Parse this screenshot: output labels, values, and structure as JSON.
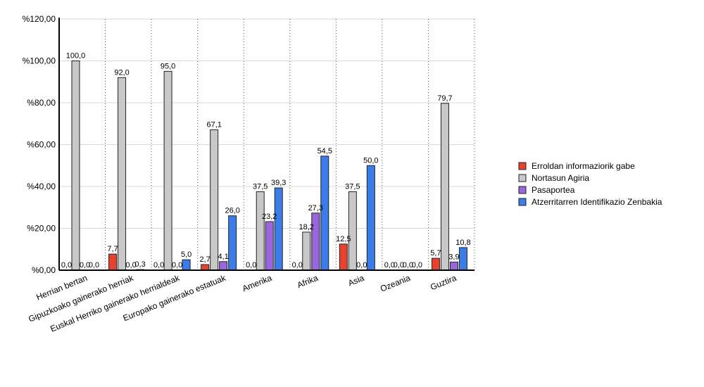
{
  "chart_data": {
    "type": "bar",
    "title": "",
    "xlabel": "",
    "ylabel": "",
    "ylim": [
      0,
      120
    ],
    "yticks": [
      0,
      20,
      40,
      60,
      80,
      100,
      120
    ],
    "ytick_labels": [
      "%0,00",
      "%20,00",
      "%40,00",
      "%60,00",
      "%80,00",
      "%100,00",
      "%120,00"
    ],
    "grid": "horizontal solid, vertical dotted between categories",
    "legend_position": "right",
    "categories": [
      "Herrian bertan",
      "Gipuzkoako gainerako herriak",
      "Euskal Herriko gainerako herrialdeak",
      "Europako gainerako estatuak",
      "Amerika",
      "Afrika",
      "Asia",
      "Ozeania",
      "Guztira"
    ],
    "series": [
      {
        "name": "Erroldan informaziorik gabe",
        "color": "#e8412c",
        "values": [
          0.0,
          7.7,
          0.0,
          2.7,
          0.0,
          0.0,
          12.5,
          0.0,
          5.7
        ],
        "labels": [
          "0,0",
          "7,7",
          "0,0",
          "2,7",
          "0,0",
          "0,0",
          "12,5",
          "0,0",
          "5,7"
        ]
      },
      {
        "name": "Nortasun Agiria",
        "color": "#c8c8c8",
        "values": [
          100.0,
          92.0,
          95.0,
          67.1,
          37.5,
          18.2,
          37.5,
          0.0,
          79.7
        ],
        "labels": [
          "100,0",
          "92,0",
          "95,0",
          "67,1",
          "37,5",
          "18,2",
          "37,5",
          "0,0",
          "79,7"
        ]
      },
      {
        "name": "Pasaportea",
        "color": "#9966dd",
        "values": [
          0.0,
          0.0,
          0.0,
          4.1,
          23.2,
          27.3,
          0.0,
          0.0,
          3.9
        ],
        "labels": [
          "0,0",
          "0,0",
          "0,0",
          "4,1",
          "23,2",
          "27,3",
          "0,0",
          "0,0",
          "3,9"
        ]
      },
      {
        "name": "Atzerritarren Identifikazio Zenbakia",
        "color": "#3b7de8",
        "values": [
          0.0,
          0.3,
          5.0,
          26.0,
          39.3,
          54.5,
          50.0,
          0.0,
          10.8
        ],
        "labels": [
          "0,0",
          "0,3",
          "5,0",
          "26,0",
          "39,3",
          "54,5",
          "50,0",
          "0,0",
          "10,8"
        ]
      }
    ]
  }
}
